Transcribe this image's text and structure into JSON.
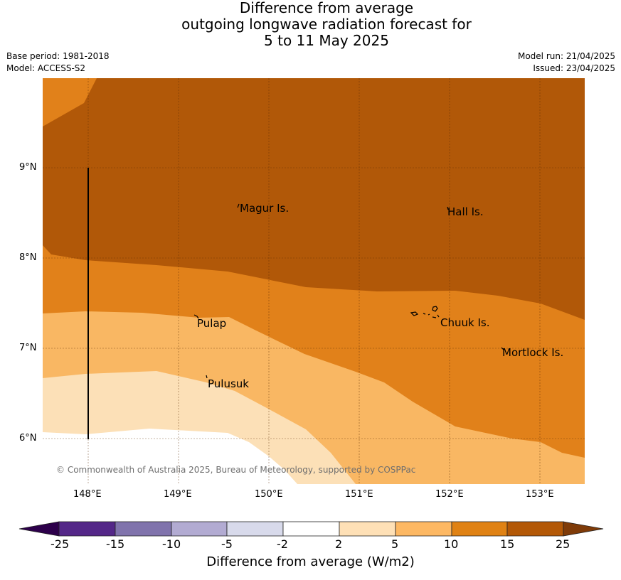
{
  "title": {
    "line1": "Difference from average",
    "line2": "outgoing longwave radiation forecast for",
    "line3": "5 to 11 May 2025"
  },
  "meta": {
    "base_period": "Base period: 1981-2018",
    "model": "Model: ACCESS-S2",
    "model_run": "Model run: 21/04/2025",
    "issued": "Issued: 23/04/2025"
  },
  "map": {
    "lat_labels": [
      "9°N",
      "8°N",
      "7°N",
      "6°N"
    ],
    "lon_labels": [
      "148°E",
      "149°E",
      "150°E",
      "151°E",
      "152°E",
      "153°E"
    ],
    "places": [
      "Magur Is.",
      "Hall Is.",
      "Pulap",
      "Chuuk Is.",
      "Mortlock Is.",
      "Pulusuk"
    ],
    "copyright": "© Commonwealth of Australia 2025, Bureau of Meteorology, supported by COSPPac",
    "fill_colors": {
      "25": "#b15808",
      "15": "#e1811a",
      "10": "#f9b763",
      "5": "#fce0b7",
      "2": "#ffffff"
    }
  },
  "colorbar": {
    "labels": [
      "-25",
      "-15",
      "-10",
      "-5",
      "-2",
      "2",
      "5",
      "10",
      "15",
      "25"
    ],
    "colors": [
      "#2d004b",
      "#542788",
      "#8073ac",
      "#b2abd2",
      "#d8daeb",
      "#ffffff",
      "#fee0b6",
      "#fdb863",
      "#e08214",
      "#b35806",
      "#7f3b08"
    ],
    "title": "Difference from average (W/m2)"
  }
}
